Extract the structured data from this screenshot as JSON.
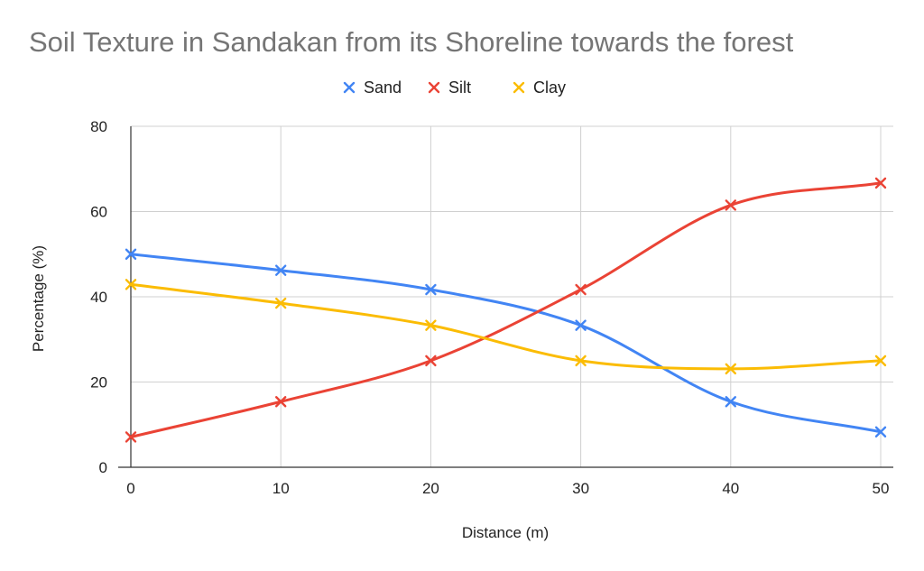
{
  "chart_data": {
    "type": "line",
    "title": "Soil Texture in Sandakan from its Shoreline towards the forest",
    "xlabel": "Distance (m)",
    "ylabel": "Percentage (%)",
    "x": [
      0,
      10,
      20,
      30,
      40,
      50
    ],
    "x_ticks": [
      "0",
      "10",
      "20",
      "30",
      "40",
      "50"
    ],
    "y_ticks": [
      "0",
      "20",
      "40",
      "60",
      "80"
    ],
    "xlim": [
      0,
      50
    ],
    "ylim": [
      0,
      80
    ],
    "grid": true,
    "smooth": true,
    "marker": "x",
    "legend_position": "top",
    "series": [
      {
        "name": "Sand",
        "color": "#4285F4",
        "values": [
          50,
          46.2,
          41.7,
          33.3,
          15.4,
          8.3
        ]
      },
      {
        "name": "Silt",
        "color": "#EA4335",
        "values": [
          7.1,
          15.4,
          25,
          41.7,
          61.5,
          66.7
        ]
      },
      {
        "name": "Clay",
        "color": "#FBBC04",
        "values": [
          42.9,
          38.5,
          33.3,
          25,
          23.1,
          25
        ]
      }
    ]
  }
}
